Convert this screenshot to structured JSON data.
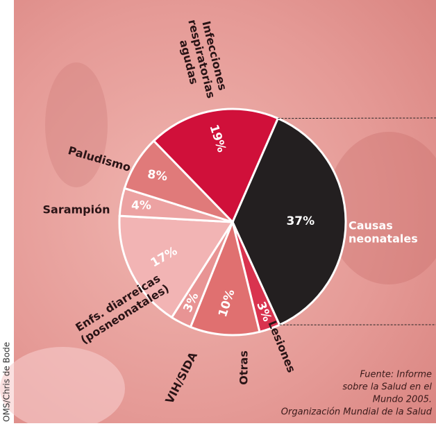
{
  "chart_data": {
    "type": "pie",
    "categories": [
      "Causas neonatales",
      "Lesiones",
      "Otras",
      "VIH/SIDA",
      "Enfs. diarreicas (posneonatales)",
      "Sarampión",
      "Paludismo",
      "Infecciones respiratorias agudas"
    ],
    "values": [
      37,
      3,
      10,
      3,
      17,
      4,
      8,
      19
    ],
    "value_labels": [
      "37%",
      "3%",
      "10%",
      "3%",
      "17%",
      "4%",
      "8%",
      "19%"
    ],
    "colors": [
      "#231f20",
      "#d9334f",
      "#e07070",
      "#e89494",
      "#f2b4b4",
      "#eca2a2",
      "#e07a7a",
      "#d0103a"
    ],
    "source": [
      "Fuente: Informe",
      "sobre la Salud en el",
      "Mundo 2005.",
      "Organización Mundial de la Salud"
    ],
    "credit": "OMS/Chris de Bode"
  }
}
